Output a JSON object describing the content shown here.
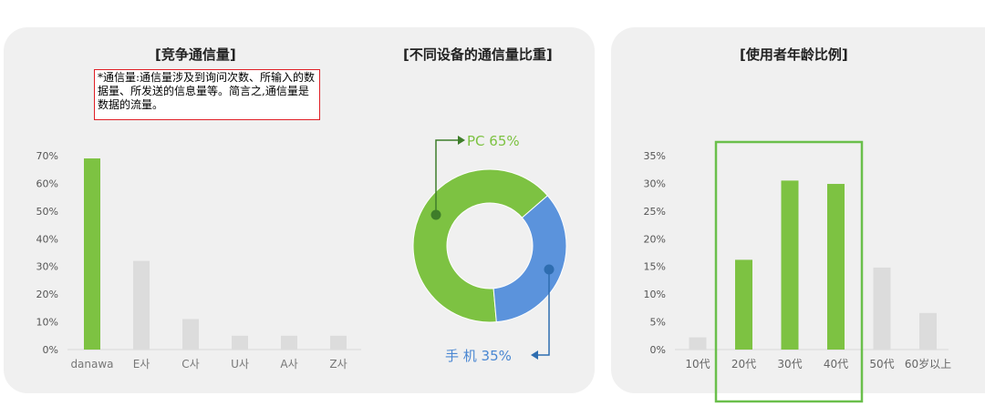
{
  "left_panel": {
    "title": "[竞争通信量]",
    "note": "*通信量:通信量涉及到询问次数、所输入的数据量、所发送的信息量等。简言之,通信量是数据的流量。"
  },
  "middle_panel": {
    "title": "[不同设备的通信量比重]"
  },
  "right_panel": {
    "title": "[使用者年龄比例]"
  },
  "chart_data": [
    {
      "type": "bar",
      "categories": [
        "danawa",
        "E사",
        "C사",
        "U사",
        "A사",
        "Z사"
      ],
      "values": [
        69,
        32,
        11,
        5,
        5,
        5
      ],
      "yticks": [
        "0%",
        "10%",
        "20%",
        "30%",
        "40%",
        "50%",
        "60%",
        "70%"
      ],
      "ylim": [
        0,
        70
      ],
      "colors": [
        "#7dc242",
        "#dcdcdc",
        "#dcdcdc",
        "#dcdcdc",
        "#dcdcdc",
        "#dcdcdc"
      ],
      "title": "[竞争通信量]"
    },
    {
      "type": "pie",
      "donut": true,
      "slices": [
        {
          "label": "PC",
          "value": 65,
          "text": "PC 65%",
          "color": "#7dc242"
        },
        {
          "label": "手机",
          "value": 35,
          "text": "手 机 35%",
          "color": "#5b93dc"
        }
      ],
      "title": "[不同设备的通信量比重]"
    },
    {
      "type": "bar",
      "categories": [
        "10代",
        "20代",
        "30代",
        "40代",
        "50代",
        "60岁以上"
      ],
      "values": [
        2.2,
        16.2,
        30.5,
        29.9,
        14.8,
        6.6
      ],
      "yticks": [
        "0%",
        "5%",
        "10%",
        "15%",
        "20%",
        "25%",
        "30%",
        "35%"
      ],
      "ylim": [
        0,
        35
      ],
      "colors": [
        "#dcdcdc",
        "#7dc242",
        "#7dc242",
        "#7dc242",
        "#dcdcdc",
        "#dcdcdc"
      ],
      "highlight": [
        "20代",
        "30代",
        "40代"
      ],
      "highlight_color": "#6abf4b",
      "title": "[使用者年龄比例]"
    }
  ]
}
